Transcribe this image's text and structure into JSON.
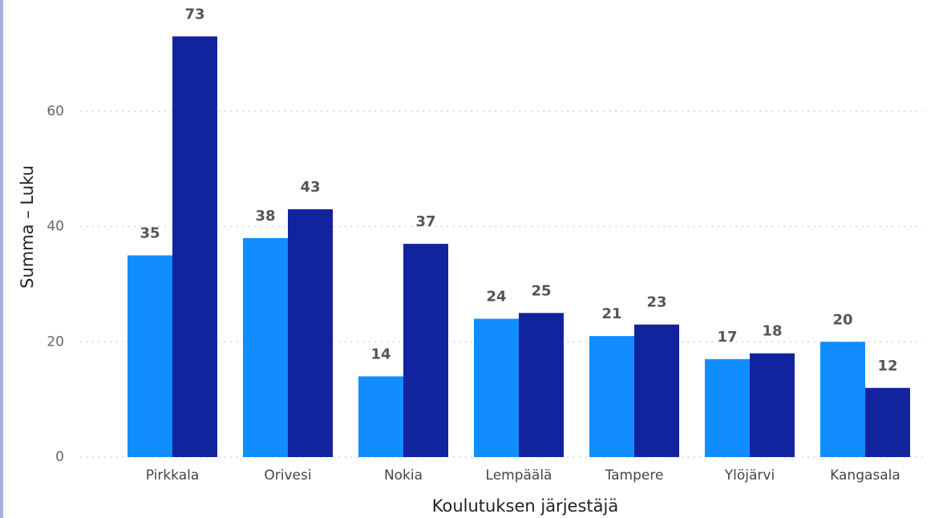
{
  "chart_data": {
    "type": "bar",
    "x_label": "Koulutuksen järjestäjä",
    "y_label": "Summa – Luku",
    "categories": [
      "Pirkkala",
      "Orivesi",
      "Nokia",
      "Lempäälä",
      "Tampere",
      "Ylöjärvi",
      "Kangasala"
    ],
    "series": [
      {
        "color": "#118dff",
        "values": [
          35,
          38,
          14,
          24,
          21,
          17,
          20
        ]
      },
      {
        "color": "#12239e",
        "values": [
          73,
          43,
          37,
          25,
          23,
          18,
          12
        ]
      }
    ],
    "ylim": [
      0,
      75
    ],
    "yticks": [
      0,
      20,
      40,
      60
    ],
    "grid": true
  }
}
